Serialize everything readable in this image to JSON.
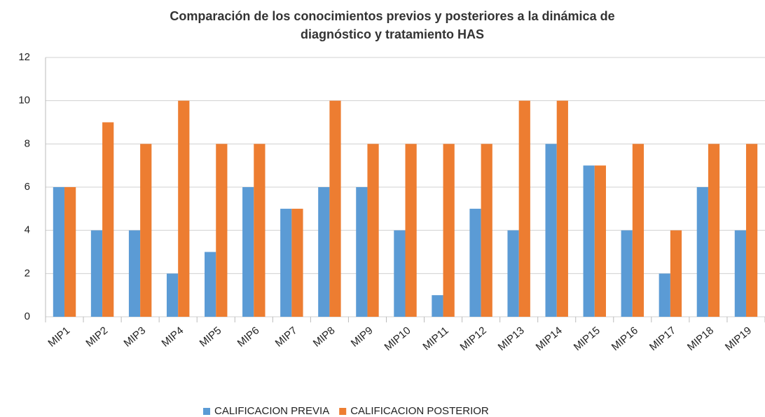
{
  "chart_data": {
    "type": "bar",
    "title": [
      "Comparación de los conocimientos previos y posteriores a la dinámica de",
      "diagnóstico y tratamiento HAS"
    ],
    "categories": [
      "MIP1",
      "MIP2",
      "MIP3",
      "MIP4",
      "MIP5",
      "MIP6",
      "MIP7",
      "MIP8",
      "MIP9",
      "MIP10",
      "MIP11",
      "MIP12",
      "MIP13",
      "MIP14",
      "MIP15",
      "MIP16",
      "MIP17",
      "MIP18",
      "MIP19"
    ],
    "series": [
      {
        "name": "CALIFICACION PREVIA",
        "color": "#5b9bd5",
        "values": [
          6,
          4,
          4,
          2,
          3,
          6,
          5,
          6,
          6,
          4,
          1,
          5,
          4,
          8,
          7,
          4,
          2,
          6,
          4
        ]
      },
      {
        "name": "CALIFICACION POSTERIOR",
        "color": "#ed7d31",
        "values": [
          6,
          9,
          8,
          10,
          8,
          8,
          5,
          10,
          8,
          8,
          8,
          8,
          10,
          10,
          7,
          8,
          4,
          8,
          8
        ]
      }
    ],
    "ylim": [
      0,
      12
    ],
    "yticks": [
      0,
      2,
      4,
      6,
      8,
      10,
      12
    ],
    "grid": true,
    "legend": "bottom"
  }
}
